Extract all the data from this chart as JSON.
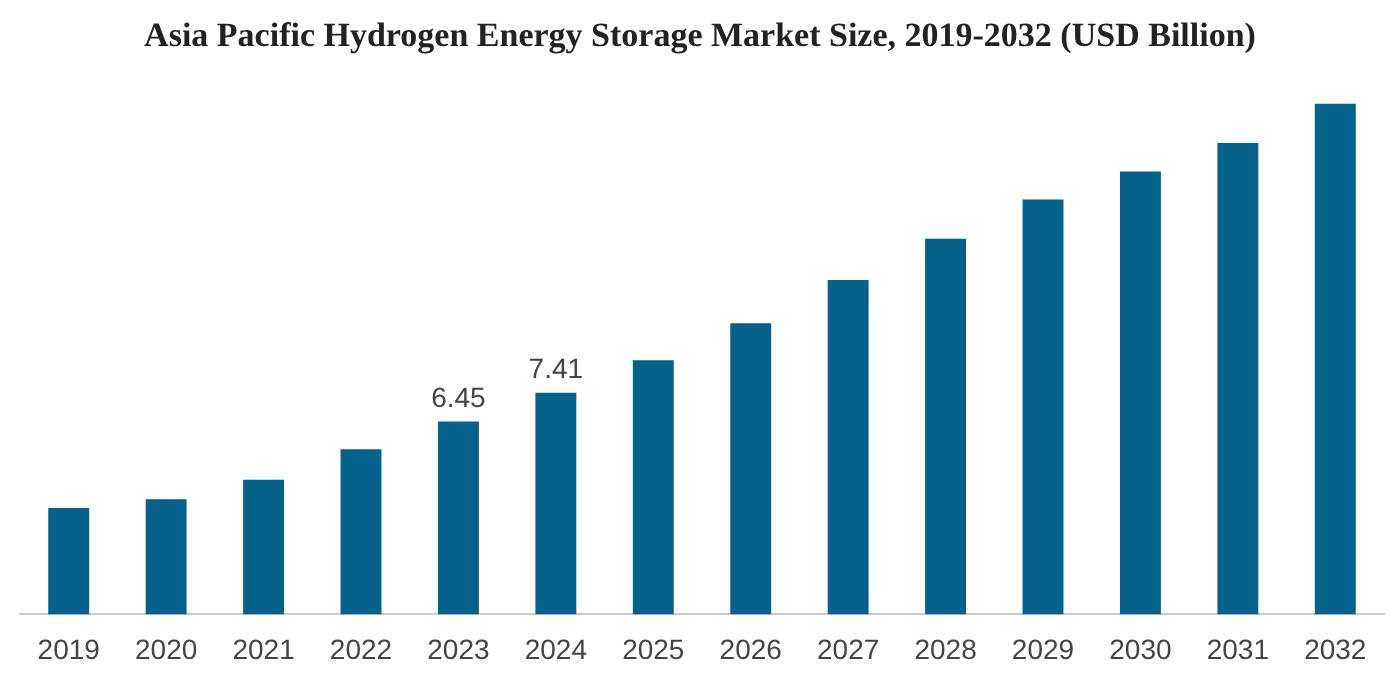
{
  "chart_data": {
    "type": "bar",
    "title": "Asia Pacific Hydrogen Energy Storage Market Size, 2019-2032 (USD Billion)",
    "categories": [
      "2019",
      "2020",
      "2021",
      "2022",
      "2023",
      "2024",
      "2025",
      "2026",
      "2027",
      "2028",
      "2029",
      "2030",
      "2031",
      "2032"
    ],
    "values": [
      3.56,
      3.85,
      4.5,
      5.52,
      6.45,
      7.41,
      8.5,
      9.73,
      11.18,
      12.56,
      13.87,
      14.81,
      15.76,
      17.07
    ],
    "value_labels": [
      null,
      null,
      null,
      null,
      "6.45",
      "7.41",
      null,
      null,
      null,
      null,
      null,
      null,
      null,
      null
    ],
    "color": "#05628b",
    "grid": false,
    "legend": false
  }
}
